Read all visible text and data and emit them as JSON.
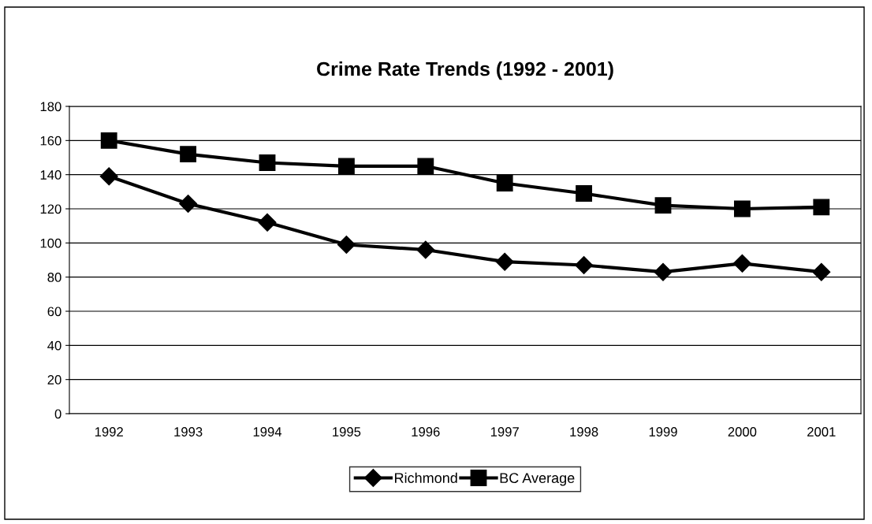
{
  "chart_data": {
    "type": "line",
    "title": "Crime Rate Trends (1992 - 2001)",
    "categories": [
      "1992",
      "1993",
      "1994",
      "1995",
      "1996",
      "1997",
      "1998",
      "1999",
      "2000",
      "2001"
    ],
    "series": [
      {
        "name": "Richmond",
        "color": "#000000",
        "marker": "diamond",
        "values": [
          139,
          123,
          112,
          99,
          96,
          89,
          87,
          83,
          88,
          83
        ]
      },
      {
        "name": "BC Average",
        "color": "#000000",
        "marker": "square",
        "values": [
          160,
          152,
          147,
          145,
          145,
          135,
          129,
          122,
          120,
          121
        ]
      }
    ],
    "ylim": [
      0,
      180
    ],
    "yticks": [
      0,
      20,
      40,
      60,
      80,
      100,
      120,
      140,
      160,
      180
    ],
    "grid": "y",
    "legend": "bottom",
    "line_style": "solid"
  }
}
